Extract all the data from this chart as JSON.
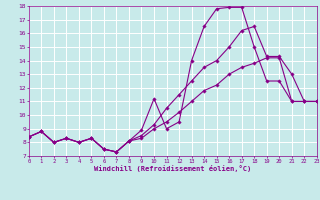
{
  "xlabel": "Windchill (Refroidissement éolien,°C)",
  "xlim": [
    0,
    23
  ],
  "ylim": [
    7,
    18
  ],
  "xticks": [
    0,
    1,
    2,
    3,
    4,
    5,
    6,
    7,
    8,
    9,
    10,
    11,
    12,
    13,
    14,
    15,
    16,
    17,
    18,
    19,
    20,
    21,
    22,
    23
  ],
  "yticks": [
    7,
    8,
    9,
    10,
    11,
    12,
    13,
    14,
    15,
    16,
    17,
    18
  ],
  "bg_color": "#c8eaea",
  "line_color": "#880088",
  "grid_color": "#ffffff",
  "line1_x": [
    0,
    1,
    2,
    3,
    4,
    5,
    6,
    7,
    8,
    9,
    10,
    11,
    12,
    13,
    14,
    15,
    16,
    17,
    18,
    19,
    20,
    21,
    22,
    23
  ],
  "line1_y": [
    8.4,
    8.8,
    8.0,
    8.3,
    8.0,
    8.3,
    7.5,
    7.3,
    8.1,
    8.9,
    11.2,
    9.0,
    9.5,
    14.0,
    16.5,
    17.8,
    17.9,
    17.9,
    15.0,
    12.5,
    12.5,
    11.0,
    11.0,
    11.0
  ],
  "line2_x": [
    0,
    1,
    2,
    3,
    4,
    5,
    6,
    7,
    8,
    9,
    10,
    11,
    12,
    13,
    14,
    15,
    16,
    17,
    18,
    19,
    20,
    21,
    22,
    23
  ],
  "line2_y": [
    8.4,
    8.8,
    8.0,
    8.3,
    8.0,
    8.3,
    7.5,
    7.3,
    8.1,
    8.5,
    9.3,
    10.5,
    11.5,
    12.5,
    13.5,
    14.0,
    15.0,
    16.2,
    16.5,
    14.3,
    14.3,
    13.0,
    11.0,
    11.0
  ],
  "line3_x": [
    0,
    1,
    2,
    3,
    4,
    5,
    6,
    7,
    8,
    9,
    10,
    11,
    12,
    13,
    14,
    15,
    16,
    17,
    18,
    19,
    20,
    21,
    22,
    23
  ],
  "line3_y": [
    8.4,
    8.8,
    8.0,
    8.3,
    8.0,
    8.3,
    7.5,
    7.3,
    8.1,
    8.3,
    9.0,
    9.5,
    10.2,
    11.0,
    11.8,
    12.2,
    13.0,
    13.5,
    13.8,
    14.2,
    14.2,
    11.0,
    11.0,
    11.0
  ]
}
